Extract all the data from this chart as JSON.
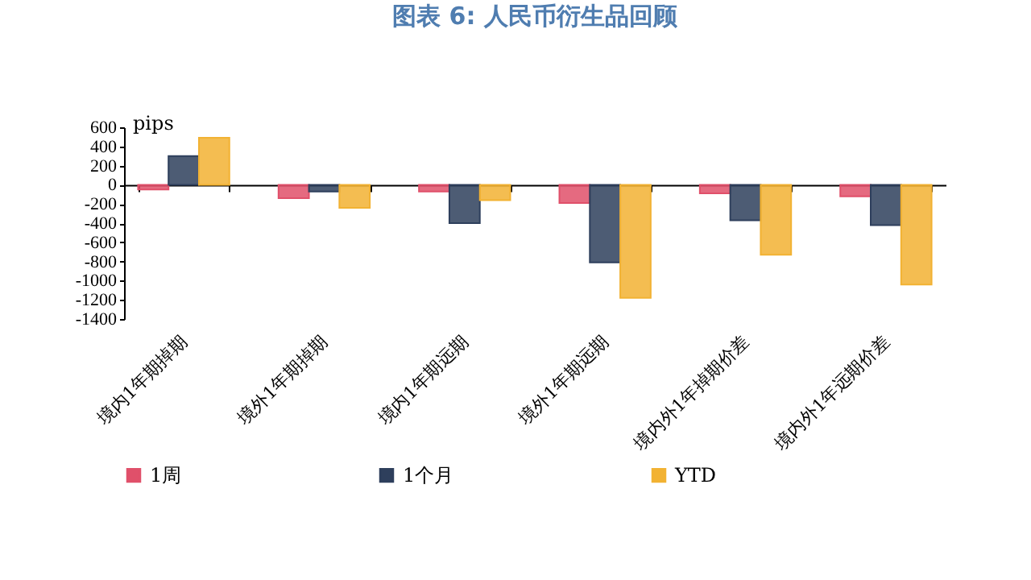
{
  "chart_data": {
    "type": "bar",
    "title": "图表 6:  人民币衍生品回顾",
    "ylabel": "pips",
    "categories": [
      "境内1年期掉期",
      "境外1年期掉期",
      "境内1年期远期",
      "境外1年期远期",
      "境内外1年掉期价差",
      "境内外1年远期价差"
    ],
    "series": [
      {
        "name": "1周",
        "color": "#e0506a",
        "values": [
          -50,
          -140,
          -70,
          -190,
          -90,
          -120
        ]
      },
      {
        "name": "1个月",
        "color": "#2e3f5c",
        "values": [
          300,
          -70,
          -400,
          -810,
          -370,
          -420
        ]
      },
      {
        "name": "YTD",
        "color": "#f2b233",
        "values": [
          490,
          -240,
          -160,
          -1180,
          -730,
          -1040
        ]
      }
    ],
    "ylim": [
      -1400,
      600
    ],
    "yticks": [
      -1400,
      -1200,
      -1000,
      -800,
      -600,
      -400,
      -200,
      0,
      200,
      400,
      600
    ],
    "legend": "bottom"
  }
}
